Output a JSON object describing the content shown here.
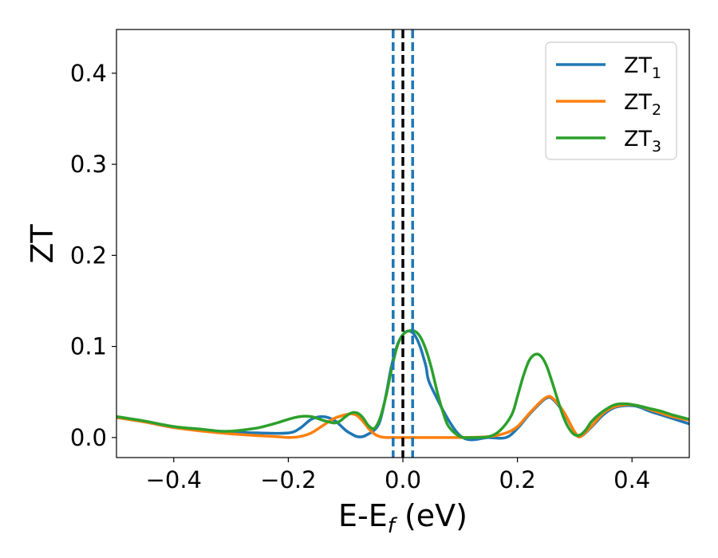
{
  "chart_data": {
    "type": "line",
    "xlabel": {
      "main": "E-E",
      "sub": "f",
      "tail": " (eV)"
    },
    "ylabel": "ZT",
    "xlim": [
      -0.5,
      0.5
    ],
    "ylim": [
      -0.022,
      0.448
    ],
    "xticks": [
      -0.4,
      -0.2,
      0.0,
      0.2,
      0.4
    ],
    "xtick_labels": [
      "−0.4",
      "−0.2",
      "0.0",
      "0.2",
      "0.4"
    ],
    "yticks": [
      0.0,
      0.1,
      0.2,
      0.3,
      0.4
    ],
    "ytick_labels": [
      "0.0",
      "0.1",
      "0.2",
      "0.3",
      "0.4"
    ],
    "grid": false,
    "legend_position": "top-right",
    "series": [
      {
        "name": "ZT1",
        "legend_main": "ZT",
        "legend_sub": "1",
        "color": "#1f77b4",
        "x": [
          -0.5,
          -0.45,
          -0.4,
          -0.35,
          -0.3,
          -0.25,
          -0.2,
          -0.18,
          -0.16,
          -0.14,
          -0.12,
          -0.1,
          -0.09,
          -0.08,
          -0.07,
          -0.06,
          -0.05,
          -0.04,
          -0.03,
          -0.02,
          -0.01,
          0.0,
          0.01,
          0.02,
          0.03,
          0.04,
          0.05,
          0.1,
          0.15,
          0.18,
          0.2,
          0.22,
          0.24,
          0.25,
          0.26,
          0.28,
          0.3,
          0.31,
          0.33,
          0.35,
          0.37,
          0.39,
          0.41,
          0.43,
          0.45,
          0.47,
          0.5
        ],
        "y": [
          0.022,
          0.017,
          0.011,
          0.008,
          0.006,
          0.005,
          0.005,
          0.01,
          0.02,
          0.023,
          0.019,
          0.008,
          0.004,
          0.001,
          0.001,
          0.004,
          0.008,
          0.018,
          0.045,
          0.078,
          0.101,
          0.113,
          0.117,
          0.113,
          0.1,
          0.079,
          0.055,
          0.002,
          0.0,
          0.0,
          0.01,
          0.025,
          0.038,
          0.043,
          0.043,
          0.028,
          0.006,
          0.001,
          0.012,
          0.025,
          0.033,
          0.035,
          0.034,
          0.029,
          0.025,
          0.021,
          0.015
        ]
      },
      {
        "name": "ZT2",
        "legend_main": "ZT",
        "legend_sub": "2",
        "color": "#ff7f0e",
        "x": [
          -0.5,
          -0.45,
          -0.4,
          -0.35,
          -0.3,
          -0.25,
          -0.22,
          -0.2,
          -0.18,
          -0.16,
          -0.14,
          -0.12,
          -0.1,
          -0.09,
          -0.08,
          -0.07,
          -0.06,
          -0.05,
          -0.04,
          -0.03,
          -0.02,
          -0.01,
          0.0,
          0.05,
          0.1,
          0.15,
          0.18,
          0.2,
          0.22,
          0.24,
          0.25,
          0.26,
          0.28,
          0.3,
          0.31,
          0.33,
          0.35,
          0.37,
          0.39,
          0.41,
          0.43,
          0.45,
          0.47,
          0.5
        ],
        "y": [
          0.022,
          0.017,
          0.011,
          0.007,
          0.004,
          0.002,
          0.001,
          0.0,
          0.001,
          0.005,
          0.013,
          0.021,
          0.025,
          0.026,
          0.024,
          0.018,
          0.01,
          0.004,
          0.001,
          0.0,
          0.0,
          0.0,
          0.0,
          0.0,
          0.0,
          0.001,
          0.005,
          0.012,
          0.026,
          0.039,
          0.044,
          0.044,
          0.029,
          0.006,
          0.001,
          0.013,
          0.027,
          0.034,
          0.036,
          0.035,
          0.031,
          0.027,
          0.023,
          0.019
        ]
      },
      {
        "name": "ZT3",
        "legend_main": "ZT",
        "legend_sub": "3",
        "color": "#2ca02c",
        "x": [
          -0.5,
          -0.45,
          -0.4,
          -0.35,
          -0.32,
          -0.3,
          -0.27,
          -0.25,
          -0.22,
          -0.2,
          -0.18,
          -0.16,
          -0.14,
          -0.12,
          -0.11,
          -0.1,
          -0.09,
          -0.08,
          -0.07,
          -0.06,
          -0.05,
          -0.04,
          -0.03,
          -0.02,
          -0.01,
          0.0,
          0.01,
          0.02,
          0.03,
          0.04,
          0.05,
          0.06,
          0.07,
          0.08,
          0.1,
          0.12,
          0.15,
          0.17,
          0.19,
          0.2,
          0.21,
          0.22,
          0.23,
          0.24,
          0.25,
          0.26,
          0.27,
          0.28,
          0.29,
          0.3,
          0.31,
          0.32,
          0.33,
          0.35,
          0.37,
          0.39,
          0.41,
          0.43,
          0.45,
          0.47,
          0.5
        ],
        "y": [
          0.023,
          0.018,
          0.012,
          0.009,
          0.007,
          0.007,
          0.009,
          0.011,
          0.016,
          0.02,
          0.023,
          0.023,
          0.019,
          0.016,
          0.018,
          0.023,
          0.027,
          0.027,
          0.022,
          0.013,
          0.01,
          0.021,
          0.044,
          0.074,
          0.1,
          0.113,
          0.117,
          0.117,
          0.111,
          0.097,
          0.076,
          0.05,
          0.028,
          0.012,
          0.001,
          0.0,
          0.001,
          0.008,
          0.025,
          0.045,
          0.067,
          0.084,
          0.091,
          0.09,
          0.08,
          0.062,
          0.042,
          0.023,
          0.01,
          0.003,
          0.003,
          0.009,
          0.018,
          0.029,
          0.036,
          0.037,
          0.035,
          0.032,
          0.029,
          0.025,
          0.02
        ]
      }
    ],
    "vlines": [
      {
        "x": -0.017,
        "color": "#1f77b4",
        "style": "dashed"
      },
      {
        "x": 0.0,
        "color": "#000000",
        "style": "dashed"
      },
      {
        "x": 0.017,
        "color": "#1f77b4",
        "style": "dashed"
      }
    ]
  }
}
